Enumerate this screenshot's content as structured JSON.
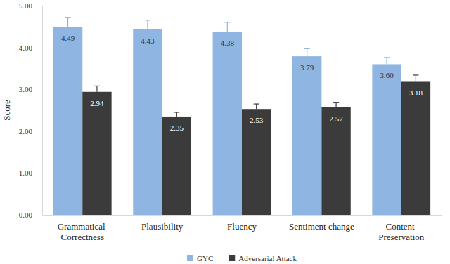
{
  "chart_data": {
    "type": "bar",
    "y_label": "Score",
    "categories": [
      "Grammatical Correctness",
      "Plausibility",
      "Fluency",
      "Sentiment change",
      "Content Preservation"
    ],
    "series": [
      {
        "name": "GYC",
        "color": "#8fb6e2",
        "values": [
          4.49,
          4.43,
          4.38,
          3.79,
          3.6
        ],
        "value_labels": [
          "4.49",
          "4.43",
          "4.38",
          "3.79",
          "3.60"
        ],
        "errors": [
          0.23,
          0.22,
          0.22,
          0.18,
          0.16
        ]
      },
      {
        "name": "Adversarial Attack",
        "color": "#3b3b3b",
        "values": [
          2.94,
          2.35,
          2.53,
          2.57,
          3.18
        ],
        "errors": [
          0.14,
          0.1,
          0.12,
          0.12,
          0.16
        ]
      }
    ],
    "ylim": [
      0,
      5
    ],
    "yticks": [
      {
        "value": 0,
        "label": "0.00"
      },
      {
        "value": 1,
        "label": "1.00"
      },
      {
        "value": 2,
        "label": "2.00"
      },
      {
        "value": 3,
        "label": "3.00"
      },
      {
        "value": 4,
        "label": "4.00"
      },
      {
        "value": 5,
        "label": "5.00"
      }
    ],
    "grid": false,
    "legend": "bottom",
    "data_labels": true
  }
}
